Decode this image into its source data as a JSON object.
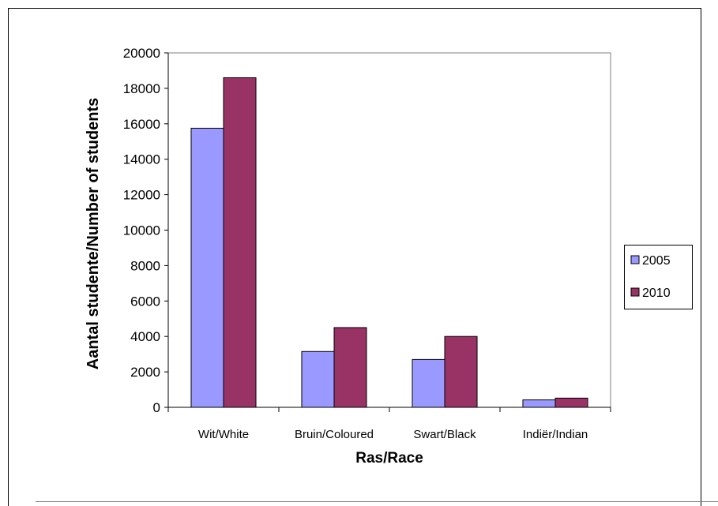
{
  "chart_data": {
    "type": "bar",
    "title": "",
    "xlabel": "Ras/Race",
    "ylabel": "Aantal studente/Number of students",
    "categories": [
      "Wit/White",
      "Bruin/Coloured",
      "Swart/Black",
      "Indiër/Indian"
    ],
    "series": [
      {
        "name": "2005",
        "values": [
          15750,
          3150,
          2700,
          420
        ],
        "color": "#9999ff"
      },
      {
        "name": "2010",
        "values": [
          18600,
          4500,
          4000,
          520
        ],
        "color": "#993366"
      }
    ],
    "ylim": [
      0,
      20000
    ],
    "yticks": [
      "0",
      "2000",
      "4000",
      "6000",
      "8000",
      "10000",
      "12000",
      "14000",
      "16000",
      "18000",
      "20000"
    ],
    "grid": false,
    "legend_position": "right",
    "plot_background": "#ffffff"
  }
}
